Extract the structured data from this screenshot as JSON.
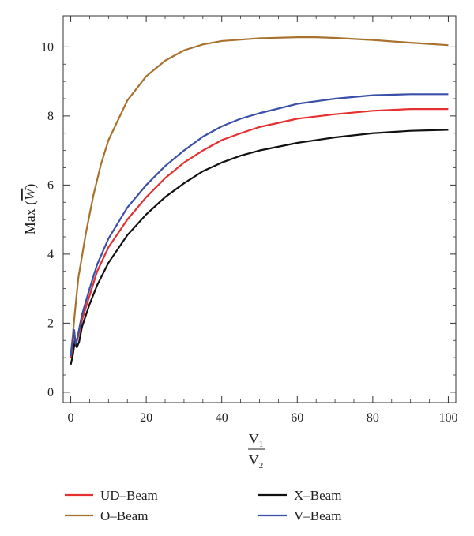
{
  "chart_data": {
    "type": "line",
    "xlabel": {
      "numerator": "V",
      "numerator_sub": "1",
      "denominator": "V",
      "denominator_sub": "2"
    },
    "ylabel": {
      "prefix": "Max (",
      "symbol": "W",
      "suffix": ")"
    },
    "xlim": [
      -2,
      102
    ],
    "ylim": [
      -0.3,
      10.9
    ],
    "xticks": [
      0,
      20,
      40,
      60,
      80,
      100
    ],
    "yticks": [
      0,
      2,
      4,
      6,
      8,
      10
    ],
    "grid": false,
    "legend_position": "bottom",
    "series": [
      {
        "name": "UD–Beam",
        "color": "#e53030",
        "points": [
          [
            0,
            1.0
          ],
          [
            0.5,
            1.4
          ],
          [
            0.9,
            1.8
          ],
          [
            1.3,
            1.35
          ],
          [
            1.8,
            1.55
          ],
          [
            3,
            2.1
          ],
          [
            5,
            2.8
          ],
          [
            7,
            3.5
          ],
          [
            10,
            4.2
          ],
          [
            15,
            5.0
          ],
          [
            20,
            5.65
          ],
          [
            25,
            6.2
          ],
          [
            30,
            6.65
          ],
          [
            35,
            7.0
          ],
          [
            40,
            7.3
          ],
          [
            45,
            7.5
          ],
          [
            50,
            7.68
          ],
          [
            60,
            7.92
          ],
          [
            70,
            8.05
          ],
          [
            80,
            8.15
          ],
          [
            90,
            8.2
          ],
          [
            100,
            8.2
          ]
        ]
      },
      {
        "name": "X–Beam",
        "color": "#111111",
        "points": [
          [
            0,
            0.8
          ],
          [
            0.6,
            1.1
          ],
          [
            1.1,
            1.5
          ],
          [
            1.6,
            1.3
          ],
          [
            2.2,
            1.45
          ],
          [
            3,
            1.9
          ],
          [
            5,
            2.55
          ],
          [
            7,
            3.1
          ],
          [
            10,
            3.75
          ],
          [
            15,
            4.55
          ],
          [
            20,
            5.15
          ],
          [
            25,
            5.65
          ],
          [
            30,
            6.05
          ],
          [
            35,
            6.4
          ],
          [
            40,
            6.65
          ],
          [
            45,
            6.85
          ],
          [
            50,
            7.0
          ],
          [
            60,
            7.22
          ],
          [
            70,
            7.38
          ],
          [
            80,
            7.5
          ],
          [
            90,
            7.57
          ],
          [
            100,
            7.6
          ]
        ]
      },
      {
        "name": "O–Beam",
        "color": "#a8722e",
        "points": [
          [
            0,
            1.1
          ],
          [
            0.5,
            1.6
          ],
          [
            1,
            2.2
          ],
          [
            2,
            3.3
          ],
          [
            4,
            4.6
          ],
          [
            6,
            5.7
          ],
          [
            8,
            6.6
          ],
          [
            10,
            7.3
          ],
          [
            15,
            8.45
          ],
          [
            20,
            9.15
          ],
          [
            25,
            9.6
          ],
          [
            30,
            9.9
          ],
          [
            35,
            10.07
          ],
          [
            40,
            10.17
          ],
          [
            50,
            10.25
          ],
          [
            60,
            10.28
          ],
          [
            65,
            10.28
          ],
          [
            70,
            10.26
          ],
          [
            80,
            10.2
          ],
          [
            90,
            10.12
          ],
          [
            100,
            10.05
          ]
        ]
      },
      {
        "name": "V–Beam",
        "color": "#3a4fa8",
        "points": [
          [
            0,
            1.05
          ],
          [
            0.5,
            1.5
          ],
          [
            0.9,
            1.8
          ],
          [
            1.3,
            1.4
          ],
          [
            1.8,
            1.6
          ],
          [
            3,
            2.25
          ],
          [
            5,
            3.0
          ],
          [
            7,
            3.7
          ],
          [
            10,
            4.45
          ],
          [
            15,
            5.35
          ],
          [
            20,
            6.0
          ],
          [
            25,
            6.55
          ],
          [
            30,
            7.0
          ],
          [
            35,
            7.4
          ],
          [
            40,
            7.7
          ],
          [
            45,
            7.92
          ],
          [
            50,
            8.08
          ],
          [
            60,
            8.35
          ],
          [
            70,
            8.5
          ],
          [
            80,
            8.6
          ],
          [
            90,
            8.63
          ],
          [
            100,
            8.63
          ]
        ]
      }
    ]
  }
}
